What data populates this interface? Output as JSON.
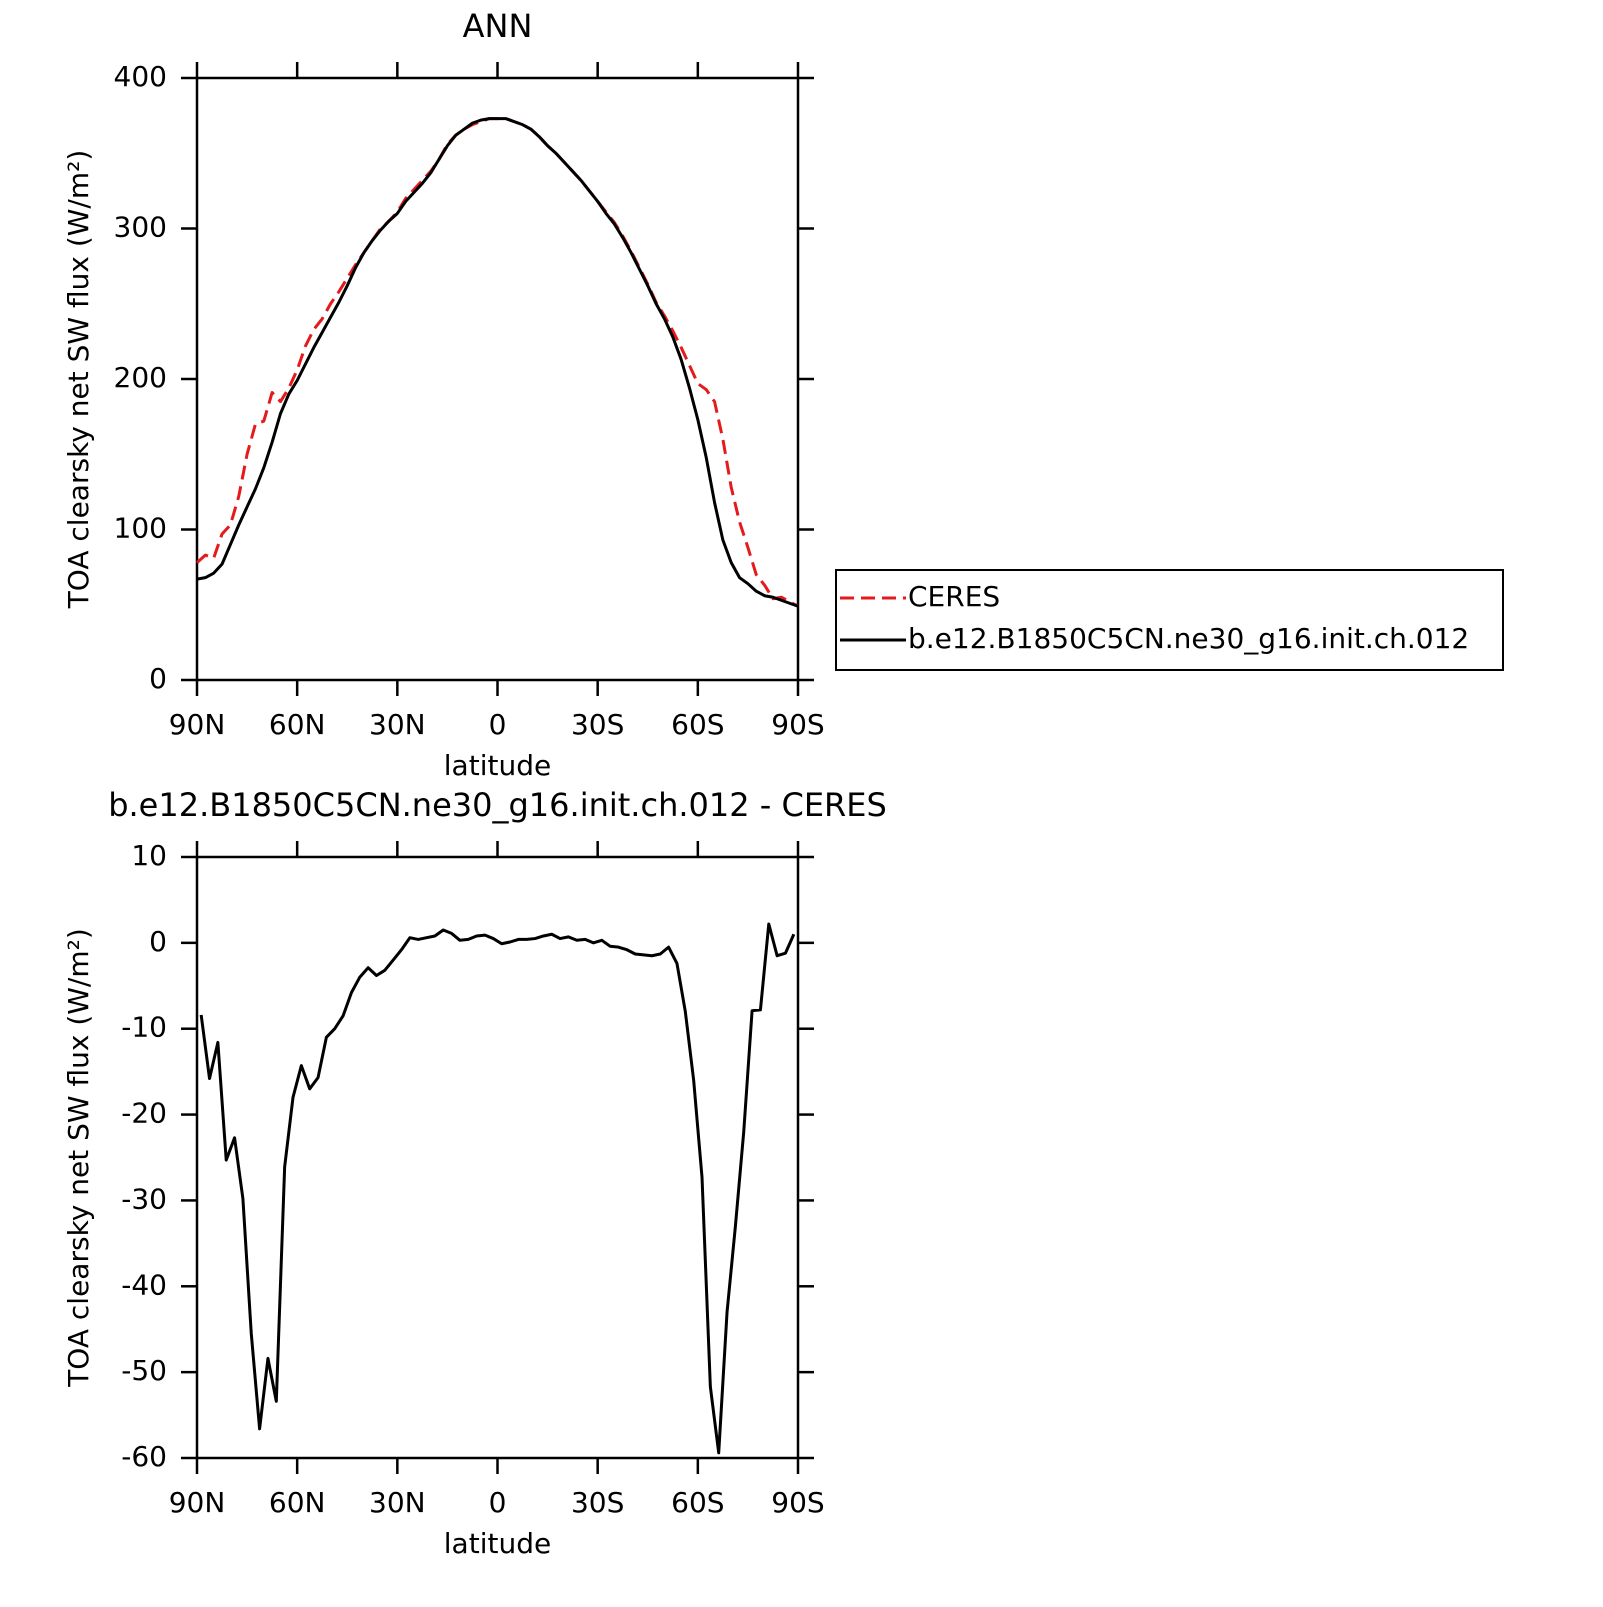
{
  "chart_data": [
    {
      "type": "line",
      "title": "ANN",
      "xlabel": "latitude",
      "ylabel": "TOA clearsky net SW flux (W/m²)",
      "x": [
        90,
        87.5,
        85,
        82.5,
        80,
        77.5,
        75,
        72.5,
        70,
        67.5,
        65,
        62.5,
        60,
        57.5,
        55,
        52.5,
        50,
        47.5,
        45,
        42.5,
        40,
        37.5,
        35,
        32.5,
        30,
        27.5,
        25,
        22.5,
        20,
        17.5,
        15,
        12.5,
        10,
        7.5,
        5,
        2.5,
        0,
        -2.5,
        -5,
        -7.5,
        -10,
        -12.5,
        -15,
        -17.5,
        -20,
        -22.5,
        -25,
        -27.5,
        -30,
        -32.5,
        -35,
        -37.5,
        -40,
        -42.5,
        -45,
        -47.5,
        -50,
        -52.5,
        -55,
        -57.5,
        -60,
        -62.5,
        -65,
        -67.5,
        -70,
        -72.5,
        -75,
        -77.5,
        -80,
        -82.5,
        -85,
        -87.5,
        -90
      ],
      "xlim": [
        90,
        -90
      ],
      "xticks": [
        {
          "value": 90,
          "label": "90N"
        },
        {
          "value": 60,
          "label": "60N"
        },
        {
          "value": 30,
          "label": "30N"
        },
        0,
        {
          "value": -30,
          "label": "30S"
        },
        {
          "value": -60,
          "label": "60S"
        },
        {
          "value": -90,
          "label": "90S"
        }
      ],
      "ylim": [
        0,
        400
      ],
      "yticks": [
        0,
        100,
        200,
        300,
        400
      ],
      "legend": "right",
      "series": [
        {
          "name": "CERES",
          "color": "#e41a1c",
          "linestyle": "dashed",
          "values": [
            78,
            83,
            81,
            97,
            103,
            122,
            150,
            170,
            172,
            191,
            185,
            194,
            206,
            222,
            233,
            240,
            250,
            258,
            267,
            276,
            284,
            292,
            300,
            305,
            311,
            320,
            326,
            332,
            338,
            346,
            356,
            362,
            366,
            369,
            371,
            373,
            373,
            373,
            371,
            369,
            366,
            361,
            355,
            350,
            344,
            338,
            332,
            325,
            318,
            311,
            304,
            295,
            285,
            274,
            263,
            251,
            242,
            232,
            221,
            209,
            197,
            193,
            185,
            160,
            128,
            105,
            88,
            70,
            63,
            54,
            55,
            52,
            49
          ]
        },
        {
          "name": "b.e12.B1850C5CN.ne30_g16.init.ch.012",
          "color": "#000000",
          "linestyle": "solid",
          "values": [
            67,
            68,
            71,
            77,
            90,
            103,
            115,
            127,
            141,
            158,
            177,
            190,
            199,
            210,
            221,
            231,
            241,
            251,
            262,
            274,
            284,
            292,
            299,
            305,
            310,
            318,
            324,
            330,
            337,
            346,
            355,
            362,
            366,
            370,
            372,
            373,
            373,
            373,
            371,
            369,
            366,
            361,
            355,
            350,
            344,
            338,
            332,
            325,
            318,
            310,
            303,
            294,
            284,
            273,
            262,
            250,
            240,
            228,
            213,
            194,
            173,
            148,
            118,
            93,
            78,
            68,
            64,
            59,
            56,
            55,
            53,
            51,
            49
          ]
        }
      ]
    },
    {
      "type": "line",
      "title": "b.e12.B1850C5CN.ne30_g16.init.ch.012 - CERES",
      "xlabel": "latitude",
      "ylabel": "TOA clearsky net SW flux (W/m²)",
      "x": [
        88.75,
        86.25,
        83.75,
        81.25,
        78.75,
        76.25,
        73.75,
        71.25,
        68.75,
        66.25,
        63.75,
        61.25,
        58.75,
        56.25,
        53.75,
        51.25,
        48.75,
        46.25,
        43.75,
        41.25,
        38.75,
        36.25,
        33.75,
        31.25,
        28.75,
        26.25,
        23.75,
        21.25,
        18.75,
        16.25,
        13.75,
        11.25,
        8.75,
        6.25,
        3.75,
        1.25,
        -1.25,
        -3.75,
        -6.25,
        -8.75,
        -11.25,
        -13.75,
        -16.25,
        -18.75,
        -21.25,
        -23.75,
        -26.25,
        -28.75,
        -31.25,
        -33.75,
        -36.25,
        -38.75,
        -41.25,
        -43.75,
        -46.25,
        -48.75,
        -51.25,
        -53.75,
        -56.25,
        -58.75,
        -61.25,
        -63.75,
        -66.25,
        -68.75,
        -71.25,
        -73.75,
        -76.25,
        -78.75,
        -81.25,
        -83.75,
        -86.25,
        -88.75
      ],
      "xlim": [
        90,
        -90
      ],
      "xticks": [
        {
          "value": 90,
          "label": "90N"
        },
        {
          "value": 60,
          "label": "60N"
        },
        {
          "value": 30,
          "label": "30N"
        },
        0,
        {
          "value": -30,
          "label": "30S"
        },
        {
          "value": -60,
          "label": "60S"
        },
        {
          "value": -90,
          "label": "90S"
        }
      ],
      "ylim": [
        -60,
        10
      ],
      "yticks": [
        -60,
        -50,
        -40,
        -30,
        -20,
        -10,
        0,
        10
      ],
      "series": [
        {
          "color": "#000000",
          "linestyle": "solid",
          "values": [
            -8.4,
            -15.8,
            -11.6,
            -25.3,
            -22.7,
            -29.8,
            -45.5,
            -56.6,
            -48.4,
            -53.4,
            -26.1,
            -18,
            -14.3,
            -17,
            -15.7,
            -11,
            -10,
            -8.5,
            -5.8,
            -4,
            -2.9,
            -3.8,
            -3.2,
            -2,
            -0.8,
            0.6,
            0.4,
            0.6,
            0.8,
            1.5,
            1.1,
            0.3,
            0.4,
            0.8,
            0.9,
            0.5,
            -0.1,
            0.1,
            0.4,
            0.4,
            0.5,
            0.8,
            1,
            0.5,
            0.7,
            0.3,
            0.4,
            0,
            0.3,
            -0.4,
            -0.5,
            -0.8,
            -1.3,
            -1.4,
            -1.5,
            -1.3,
            -0.5,
            -2.4,
            -8,
            -16,
            -27.3,
            -51.7,
            -59.4,
            -43,
            -33,
            -22,
            -7.9,
            -7.8,
            2.2,
            -1.5,
            -1.2,
            1.0
          ]
        }
      ]
    }
  ]
}
